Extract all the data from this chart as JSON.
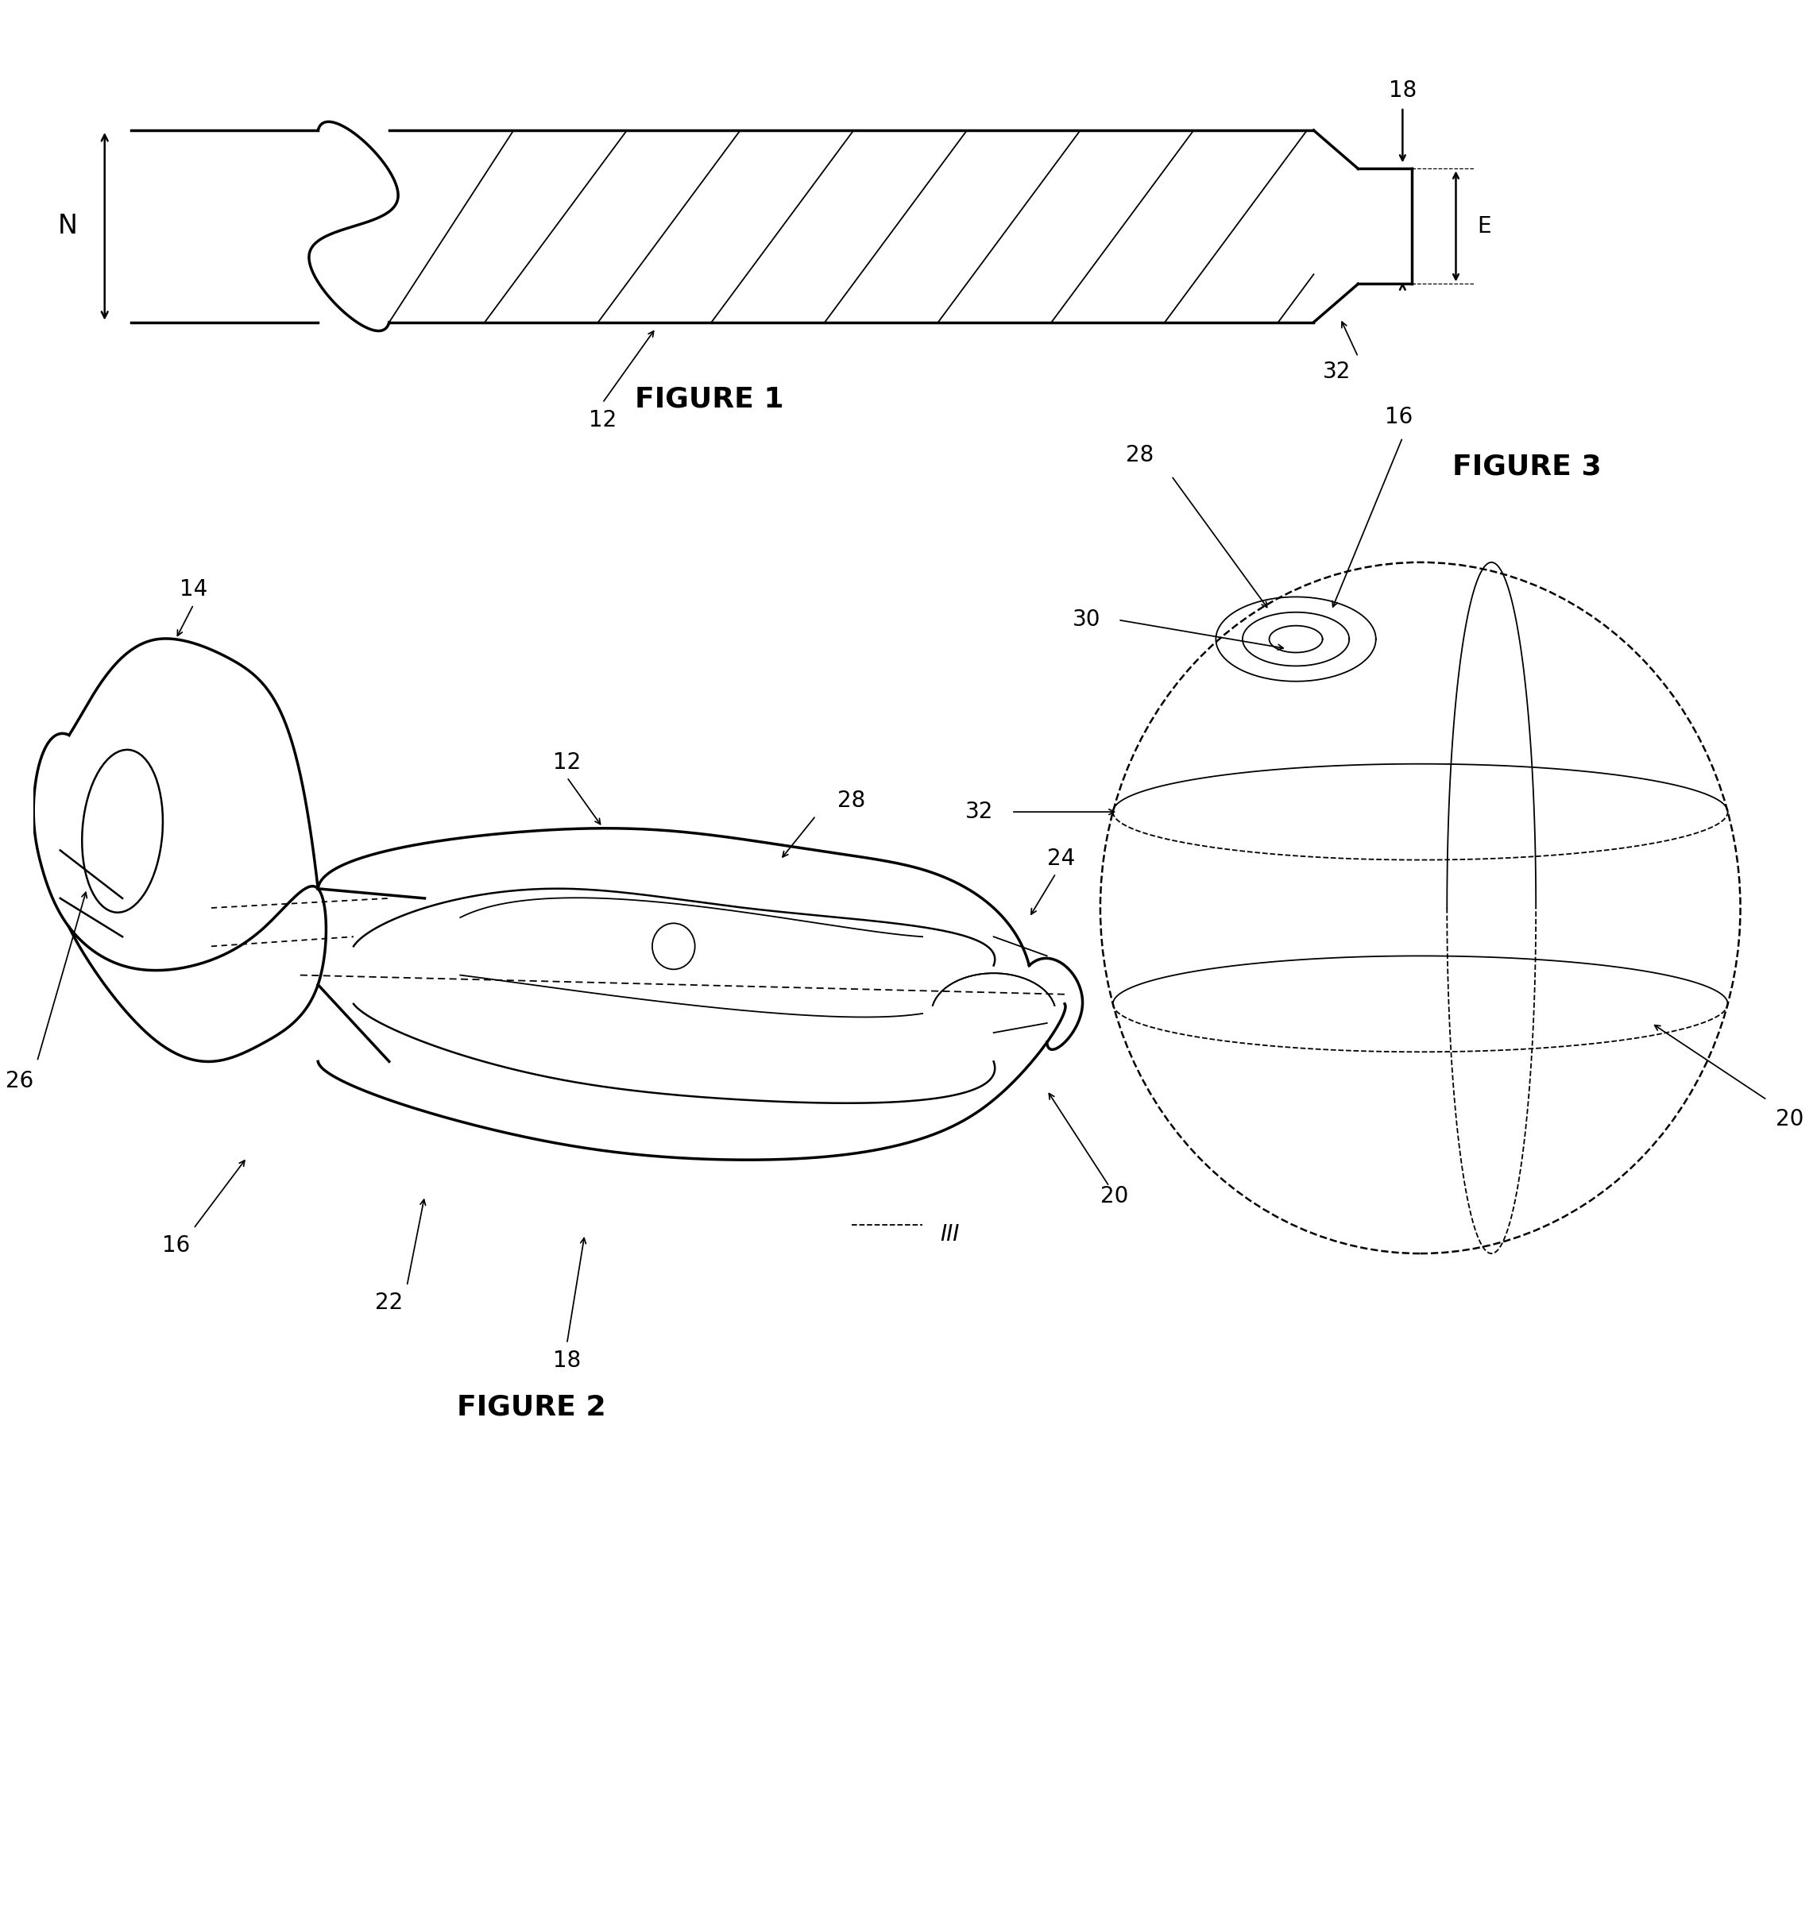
{
  "bg_color": "#ffffff",
  "line_color": "#000000",
  "fig_width": 22.87,
  "fig_height": 24.31,
  "figure1_caption": "FIGURE 1",
  "figure2_caption": "FIGURE 2",
  "figure3_caption": "FIGURE 3",
  "lw_thick": 2.5,
  "lw_med": 1.8,
  "lw_thin": 1.3,
  "fontsize_label": 20,
  "fontsize_caption": 26,
  "labels": {
    "N": "N",
    "E": "E",
    "12_fig1": "12",
    "18_fig1": "18",
    "32_fig1": "32",
    "12_fig2": "12",
    "14_fig2": "14",
    "16_fig2": "16",
    "18_fig2": "18",
    "20_fig2": "20",
    "22_fig2": "22",
    "24_fig2": "24",
    "26_fig2": "26",
    "28_fig2": "28",
    "16_fig3": "16",
    "20_fig3": "20",
    "28_fig3": "28",
    "30_fig3": "30",
    "32_fig3": "32",
    "III": "III"
  }
}
